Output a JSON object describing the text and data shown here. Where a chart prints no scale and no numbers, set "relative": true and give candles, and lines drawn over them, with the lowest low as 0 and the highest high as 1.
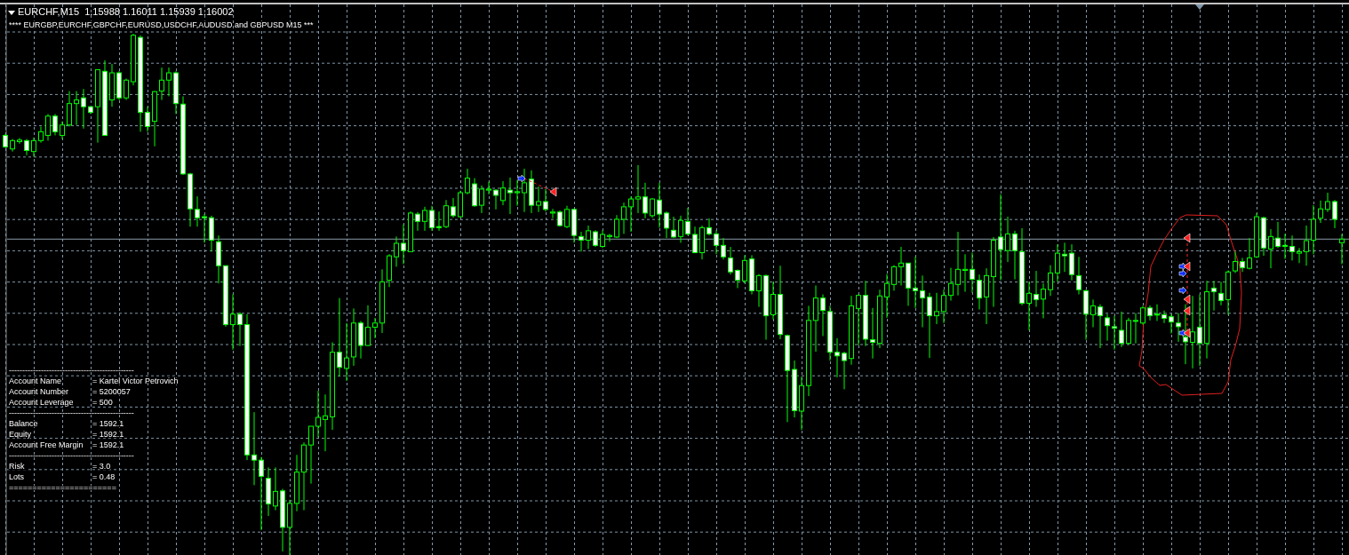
{
  "chart_data": {
    "type": "candlestick",
    "title": "EURCHF,M15  1.15988 1.16011 1.15939 1.16002",
    "annotations": [
      "**** EURGBP,EURCHF,GBPCHF,EURUSD,USDCHF,AUDUSD and GBPUSD M15 ***",
      "-----------------------------------------------",
      "Account Name = Kartel Victor Petrovich",
      "Account Number = 5200057",
      "Account Leverage = 500",
      "-----------------------------------------------",
      "Balance = 1592.1",
      "Equity = 1592.1",
      "Account Free Margin = 1592.1",
      "-----------------------------------------------",
      "Risk = 3.0",
      "Lots = 0.48",
      "======================="
    ],
    "relative": true,
    "color": "#00ff00",
    "grid": true,
    "ref_lines": [
      {
        "axis": "y",
        "value": 0.606,
        "color": "#8a9aa8"
      }
    ],
    "categories": [
      null,
      null,
      null,
      null,
      null,
      null,
      null,
      null,
      null,
      null,
      null,
      null,
      null,
      null,
      null,
      null,
      null,
      null,
      null,
      null,
      null,
      null,
      null,
      null,
      null,
      null,
      null,
      null,
      null,
      null,
      null,
      null,
      null,
      null,
      null,
      null,
      null,
      null,
      null,
      null,
      null,
      null,
      null,
      null,
      null,
      null,
      null,
      null,
      null,
      null,
      null,
      null,
      null,
      null,
      null,
      null,
      null,
      null,
      null,
      null,
      null,
      null,
      null,
      null,
      null,
      null,
      null,
      null,
      null,
      null,
      null,
      null,
      null,
      null,
      null,
      null,
      null,
      null,
      null,
      null,
      null,
      null,
      null,
      null,
      null,
      null,
      null,
      null,
      null,
      null,
      null,
      null,
      null,
      null,
      null,
      null,
      null,
      null,
      null,
      null,
      null,
      null,
      null,
      null,
      null,
      null,
      null,
      null,
      null,
      null,
      null,
      null,
      null,
      null,
      null,
      null,
      null,
      null,
      null,
      null,
      null,
      null,
      null,
      null,
      null,
      null,
      null,
      null,
      null,
      null,
      null,
      null,
      null,
      null,
      null,
      null,
      null,
      null,
      null,
      null,
      null,
      null,
      null,
      null,
      null,
      null,
      null,
      null,
      null,
      null,
      null,
      null,
      null,
      null,
      null,
      null,
      null,
      null,
      null,
      null,
      null,
      null,
      null,
      null,
      null,
      null,
      null,
      null,
      null,
      null,
      null,
      null,
      null,
      null,
      null,
      null,
      null,
      null,
      null,
      null,
      null,
      null,
      null,
      null,
      null,
      null,
      null,
      null,
      null
    ],
    "ohlc": [
      [
        0.805,
        0.808,
        0.781,
        0.783
      ],
      [
        0.779,
        0.798,
        0.774,
        0.795
      ],
      [
        0.793,
        0.8,
        0.789,
        0.796
      ],
      [
        0.795,
        0.798,
        0.767,
        0.776
      ],
      [
        0.774,
        0.801,
        0.764,
        0.795
      ],
      [
        0.795,
        0.822,
        0.791,
        0.812
      ],
      [
        0.805,
        0.846,
        0.795,
        0.842
      ],
      [
        0.842,
        0.846,
        0.805,
        0.812
      ],
      [
        0.805,
        0.832,
        0.798,
        0.825
      ],
      [
        0.825,
        0.89,
        0.822,
        0.866
      ],
      [
        0.866,
        0.89,
        0.825,
        0.873
      ],
      [
        0.877,
        0.894,
        0.818,
        0.86
      ],
      [
        0.86,
        0.861,
        0.846,
        0.849
      ],
      [
        0.86,
        0.931,
        0.791,
        0.931
      ],
      [
        0.928,
        0.949,
        0.805,
        0.805
      ],
      [
        0.873,
        0.942,
        0.86,
        0.925
      ],
      [
        0.925,
        0.928,
        0.873,
        0.877
      ],
      [
        0.877,
        0.914,
        0.873,
        0.911
      ],
      [
        0.908,
        1,
        0.901,
        0.997
      ],
      [
        0.993,
        0.997,
        0.812,
        0.849
      ],
      [
        0.849,
        0.86,
        0.812,
        0.822
      ],
      [
        0.832,
        0.89,
        0.784,
        0.889
      ],
      [
        0.89,
        0.935,
        0.873,
        0.911
      ],
      [
        0.911,
        0.935,
        0.88,
        0.925
      ],
      [
        0.925,
        0.928,
        0.846,
        0.866
      ],
      [
        0.865,
        0.88,
        0.729,
        0.731
      ],
      [
        0.731,
        0.733,
        0.63,
        0.664
      ],
      [
        0.663,
        0.688,
        0.63,
        0.647
      ],
      [
        0.649,
        0.654,
        0.599,
        0.647
      ],
      [
        0.647,
        0.651,
        0.582,
        0.604
      ],
      [
        0.601,
        0.613,
        0.521,
        0.555
      ],
      [
        0.555,
        0.555,
        0.438,
        0.442
      ],
      [
        0.442,
        0.5,
        0.394,
        0.462
      ],
      [
        0.462,
        0.466,
        0.401,
        0.442
      ],
      [
        0.442,
        0.462,
        0.182,
        0.192
      ],
      [
        0.192,
        0.274,
        0.134,
        0.182
      ],
      [
        0.182,
        0.188,
        0.048,
        0.151
      ],
      [
        0.147,
        0.168,
        0.075,
        0.098
      ],
      [
        0.094,
        0.168,
        0.086,
        0.122
      ],
      [
        0.123,
        0.127,
        0.007,
        0.053
      ],
      [
        0.053,
        0.106,
        0,
        0.099
      ],
      [
        0.099,
        0.192,
        0.084,
        0.159
      ],
      [
        0.159,
        0.216,
        0.086,
        0.211
      ],
      [
        0.211,
        0.247,
        0.137,
        0.247
      ],
      [
        0.247,
        0.315,
        0.226,
        0.264
      ],
      [
        0.26,
        0.308,
        0.199,
        0.267
      ],
      [
        0.265,
        0.408,
        0.24,
        0.389
      ],
      [
        0.389,
        0.493,
        0.342,
        0.36
      ],
      [
        0.358,
        0.445,
        0.334,
        0.378
      ],
      [
        0.38,
        0.473,
        0.363,
        0.445
      ],
      [
        0.445,
        0.449,
        0.377,
        0.402
      ],
      [
        0.402,
        0.479,
        0.401,
        0.437
      ],
      [
        0.437,
        0.455,
        0.416,
        0.445
      ],
      [
        0.445,
        0.548,
        0.426,
        0.524
      ],
      [
        0.527,
        0.577,
        0.514,
        0.574
      ],
      [
        0.572,
        0.611,
        0.553,
        0.598
      ],
      [
        0.598,
        0.634,
        0.558,
        0.584
      ],
      [
        0.582,
        0.659,
        0.582,
        0.656
      ],
      [
        0.654,
        0.658,
        0.622,
        0.64
      ],
      [
        0.64,
        0.668,
        0.622,
        0.661
      ],
      [
        0.661,
        0.67,
        0.622,
        0.628
      ],
      [
        0.63,
        0.659,
        0.622,
        0.628
      ],
      [
        0.63,
        0.681,
        0.627,
        0.67
      ],
      [
        0.668,
        0.685,
        0.647,
        0.651
      ],
      [
        0.649,
        0.699,
        0.647,
        0.695
      ],
      [
        0.695,
        0.741,
        0.692,
        0.723
      ],
      [
        0.712,
        0.723,
        0.668,
        0.67
      ],
      [
        0.671,
        0.709,
        0.656,
        0.702
      ],
      [
        0.7,
        0.716,
        0.692,
        0.702
      ],
      [
        0.7,
        0.702,
        0.663,
        0.69
      ],
      [
        0.68,
        0.717,
        0.671,
        0.704
      ],
      [
        0.7,
        0.724,
        0.654,
        0.695
      ],
      [
        0.695,
        0.719,
        0.67,
        0.697
      ],
      [
        0.695,
        0.741,
        0.658,
        0.714
      ],
      [
        0.721,
        0.738,
        0.656,
        0.671
      ],
      [
        0.671,
        0.707,
        0.658,
        0.678
      ],
      [
        0.678,
        0.702,
        0.659,
        0.663
      ],
      [
        0.656,
        0.664,
        0.646,
        0.658
      ],
      [
        0.658,
        0.661,
        0.63,
        0.632
      ],
      [
        0.63,
        0.67,
        0.627,
        0.663
      ],
      [
        0.663,
        0.664,
        0.599,
        0.613
      ],
      [
        0.611,
        0.62,
        0.582,
        0.604
      ],
      [
        0.604,
        0.632,
        0.587,
        0.622
      ],
      [
        0.62,
        0.623,
        0.591,
        0.594
      ],
      [
        0.592,
        0.623,
        0.589,
        0.615
      ],
      [
        0.611,
        0.616,
        0.601,
        0.613
      ],
      [
        0.61,
        0.652,
        0.608,
        0.644
      ],
      [
        0.644,
        0.676,
        0.616,
        0.668
      ],
      [
        0.668,
        0.688,
        0.62,
        0.683
      ],
      [
        0.683,
        0.748,
        0.656,
        0.687
      ],
      [
        0.687,
        0.714,
        0.646,
        0.656
      ],
      [
        0.651,
        0.685,
        0.647,
        0.683
      ],
      [
        0.681,
        0.714,
        0.628,
        0.654
      ],
      [
        0.656,
        0.659,
        0.608,
        0.627
      ],
      [
        0.623,
        0.649,
        0.608,
        0.61
      ],
      [
        0.611,
        0.651,
        0.599,
        0.642
      ],
      [
        0.64,
        0.666,
        0.613,
        0.616
      ],
      [
        0.615,
        0.63,
        0.579,
        0.58
      ],
      [
        0.58,
        0.632,
        0.567,
        0.628
      ],
      [
        0.628,
        0.646,
        0.613,
        0.616
      ],
      [
        0.616,
        0.623,
        0.577,
        0.594
      ],
      [
        0.594,
        0.608,
        0.567,
        0.572
      ],
      [
        0.57,
        0.591,
        0.538,
        0.543
      ],
      [
        0.546,
        0.548,
        0.512,
        0.527
      ],
      [
        0.526,
        0.575,
        0.521,
        0.565
      ],
      [
        0.568,
        0.575,
        0.5,
        0.507
      ],
      [
        0.507,
        0.539,
        0.476,
        0.536
      ],
      [
        0.536,
        0.538,
        0.413,
        0.459
      ],
      [
        0.461,
        0.524,
        0.452,
        0.5
      ],
      [
        0.5,
        0.555,
        0.414,
        0.423
      ],
      [
        0.421,
        0.423,
        0.255,
        0.354
      ],
      [
        0.356,
        0.373,
        0.264,
        0.277
      ],
      [
        0.276,
        0.342,
        0.24,
        0.325
      ],
      [
        0.325,
        0.478,
        0.305,
        0.45
      ],
      [
        0.45,
        0.517,
        0.39,
        0.493
      ],
      [
        0.493,
        0.5,
        0.42,
        0.469
      ],
      [
        0.467,
        0.478,
        0.373,
        0.389
      ],
      [
        0.389,
        0.416,
        0.341,
        0.382
      ],
      [
        0.387,
        0.39,
        0.318,
        0.373
      ],
      [
        0.377,
        0.497,
        0.365,
        0.478
      ],
      [
        0.473,
        0.5,
        0.402,
        0.498
      ],
      [
        0.498,
        0.526,
        0.401,
        0.414
      ],
      [
        0.413,
        0.474,
        0.377,
        0.408
      ],
      [
        0.406,
        0.509,
        0.397,
        0.497
      ],
      [
        0.495,
        0.539,
        0.455,
        0.521
      ],
      [
        0.519,
        0.556,
        0.507,
        0.553
      ],
      [
        0.553,
        0.591,
        0.517,
        0.56
      ],
      [
        0.56,
        0.56,
        0.478,
        0.512
      ],
      [
        0.512,
        0.572,
        0.474,
        0.507
      ],
      [
        0.507,
        0.536,
        0.437,
        0.493
      ],
      [
        0.495,
        0.503,
        0.378,
        0.459
      ],
      [
        0.459,
        0.503,
        0.443,
        0.467
      ],
      [
        0.467,
        0.509,
        0.445,
        0.498
      ],
      [
        0.498,
        0.551,
        0.488,
        0.521
      ],
      [
        0.519,
        0.62,
        0.498,
        0.548
      ],
      [
        0.546,
        0.577,
        0.505,
        0.548
      ],
      [
        0.548,
        0.58,
        0.503,
        0.529
      ],
      [
        0.527,
        0.538,
        0.471,
        0.493
      ],
      [
        0.495,
        0.55,
        0.443,
        0.536
      ],
      [
        0.534,
        0.61,
        0.476,
        0.604
      ],
      [
        0.61,
        0.692,
        0.527,
        0.586
      ],
      [
        0.584,
        0.649,
        0.562,
        0.616
      ],
      [
        0.616,
        0.622,
        0.529,
        0.584
      ],
      [
        0.582,
        0.627,
        0.479,
        0.483
      ],
      [
        0.483,
        0.524,
        0.431,
        0.502
      ],
      [
        0.5,
        0.545,
        0.476,
        0.49
      ],
      [
        0.491,
        0.521,
        0.454,
        0.51
      ],
      [
        0.509,
        0.556,
        0.497,
        0.541
      ],
      [
        0.541,
        0.596,
        0.524,
        0.579
      ],
      [
        0.577,
        0.599,
        0.543,
        0.574
      ],
      [
        0.579,
        0.596,
        0.527,
        0.538
      ],
      [
        0.536,
        0.572,
        0.5,
        0.509
      ],
      [
        0.507,
        0.509,
        0.413,
        0.462
      ],
      [
        0.461,
        0.49,
        0.437,
        0.478
      ],
      [
        0.476,
        0.481,
        0.397,
        0.459
      ],
      [
        0.455,
        0.462,
        0.411,
        0.44
      ],
      [
        0.438,
        0.459,
        0.394,
        0.435
      ],
      [
        0.431,
        0.467,
        0.399,
        0.406
      ],
      [
        0.406,
        0.455,
        0.404,
        0.45
      ],
      [
        0.449,
        0.464,
        0.406,
        0.45
      ],
      [
        0.445,
        0.478,
        0.442,
        0.474
      ],
      [
        0.474,
        0.479,
        0.45,
        0.459
      ],
      [
        0.462,
        0.481,
        0.449,
        0.461
      ],
      [
        0.461,
        0.469,
        0.445,
        0.454
      ],
      [
        0.457,
        0.462,
        0.425,
        0.447
      ],
      [
        0.445,
        0.464,
        0.409,
        0.438
      ],
      [
        0.418,
        0.481,
        0.366,
        0.409
      ],
      [
        0.408,
        0.497,
        0.358,
        0.428
      ],
      [
        0.437,
        0.5,
        0.363,
        0.406
      ],
      [
        0.406,
        0.526,
        0.377,
        0.505
      ],
      [
        0.512,
        0.526,
        0.469,
        0.505
      ],
      [
        0.502,
        0.524,
        0.479,
        0.488
      ],
      [
        0.49,
        0.546,
        0.461,
        0.543
      ],
      [
        0.545,
        0.582,
        0.541,
        0.563
      ],
      [
        0.563,
        0.57,
        0.543,
        0.551
      ],
      [
        0.55,
        0.608,
        0.548,
        0.57
      ],
      [
        0.572,
        0.656,
        0.57,
        0.649
      ],
      [
        0.647,
        0.649,
        0.574,
        0.589
      ],
      [
        0.587,
        0.625,
        0.55,
        0.611
      ],
      [
        0.608,
        0.639,
        0.589,
        0.592
      ],
      [
        0.594,
        0.616,
        0.568,
        0.592
      ],
      [
        0.592,
        0.613,
        0.565,
        0.582
      ],
      [
        0.579,
        0.589,
        0.56,
        0.582
      ],
      [
        0.582,
        0.632,
        0.555,
        0.603
      ],
      [
        0.604,
        0.671,
        0.577,
        0.644
      ],
      [
        0.646,
        0.68,
        0.637,
        0.664
      ],
      [
        0.663,
        0.695,
        0.658,
        0.678
      ],
      [
        0.678,
        0.681,
        0.627,
        0.644
      ],
      [
        0.599,
        0.616,
        0.558,
        0.606
      ]
    ]
  }
}
